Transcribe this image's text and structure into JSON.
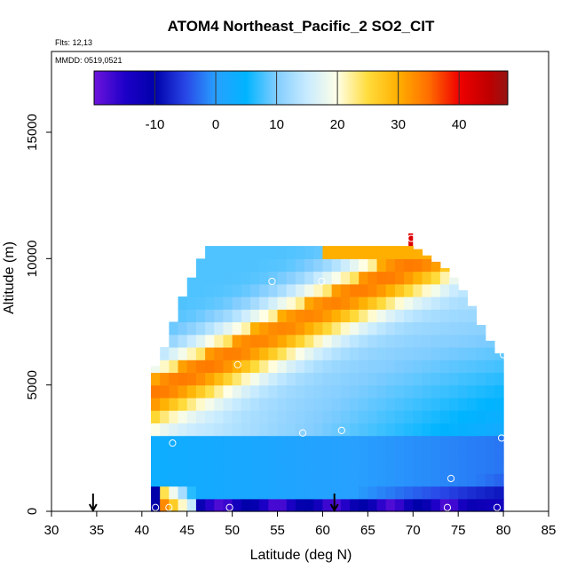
{
  "chart_data": {
    "type": "heatmap",
    "title": "ATOM4 Northeast_Pacific_2 SO2_CIT",
    "flights_label": "Flts: 12,13",
    "dates_label": "MMDD: 0519,0521",
    "xlabel": "Latitude (deg N)",
    "ylabel": "Altitude (m)",
    "xlim": [
      30,
      85
    ],
    "ylim": [
      0,
      17500
    ],
    "x_ticks": [
      "30",
      "35",
      "40",
      "45",
      "50",
      "55",
      "60",
      "65",
      "70",
      "75",
      "80",
      "85"
    ],
    "y_ticks": [
      "0",
      "5000",
      "10000",
      "15000"
    ],
    "colorbar": {
      "range": [
        -20,
        48
      ],
      "tick_labels": [
        "-10",
        "0",
        "10",
        "20",
        "30",
        "40"
      ],
      "tick_values": [
        -10,
        0,
        10,
        20,
        30,
        40
      ]
    },
    "grid_cells": {
      "lat_step": 1,
      "alt_step": 500
    },
    "field_features": [
      {
        "feature": "upper boundary (m) by latitude",
        "lat": [
          41,
          42,
          43,
          44,
          45,
          46,
          47,
          50,
          55,
          60,
          65,
          70,
          72,
          74,
          76,
          78,
          79,
          80
        ],
        "alt": [
          5500,
          6000,
          7000,
          8000,
          9000,
          9500,
          10500,
          10500,
          10500,
          10500,
          10500,
          10500,
          10000,
          9500,
          8500,
          7000,
          6500,
          6000
        ]
      },
      {
        "feature": "SO2 maximum layer",
        "value_range": [
          25,
          35
        ],
        "region": "sloping band from lat 42-46 near 4500-5500 m up to lat 65-70 near 9500-10000 m"
      },
      {
        "feature": "near-surface minimum",
        "value_range": [
          -20,
          -10
        ],
        "region": "lat 45-75, altitude 0-600 m"
      },
      {
        "feature": "surface plume",
        "value_range": [
          35,
          48
        ],
        "region": "lat 42-46, altitude 0-1200 m"
      }
    ],
    "observation_points": [
      {
        "lat": 41.5,
        "alt": 150
      },
      {
        "lat": 43.0,
        "alt": 150
      },
      {
        "lat": 49.7,
        "alt": 150
      },
      {
        "lat": 73.8,
        "alt": 150
      },
      {
        "lat": 79.3,
        "alt": 150
      },
      {
        "lat": 43.4,
        "alt": 2700
      },
      {
        "lat": 50.6,
        "alt": 5800
      },
      {
        "lat": 57.8,
        "alt": 3100
      },
      {
        "lat": 62.1,
        "alt": 3200
      },
      {
        "lat": 79.8,
        "alt": 2900
      },
      {
        "lat": 74.2,
        "alt": 1300
      },
      {
        "lat": 46.3,
        "alt": 10300
      },
      {
        "lat": 54.4,
        "alt": 9100
      },
      {
        "lat": 59.9,
        "alt": 9100
      },
      {
        "lat": 76.9,
        "alt": 8900
      },
      {
        "lat": 80.0,
        "alt": 6200
      },
      {
        "lat": 69.8,
        "alt": 10800
      }
    ],
    "arrows": [
      {
        "lat": 34.6,
        "alt": 0
      },
      {
        "lat": 61.3,
        "alt": 0
      }
    ]
  }
}
